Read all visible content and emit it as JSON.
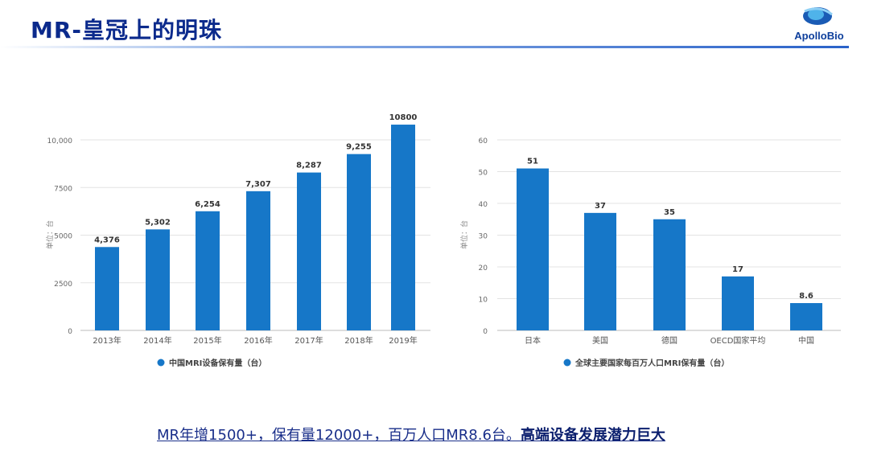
{
  "header": {
    "title": "MR-皇冠上的明珠",
    "logo_text": "ApolloBio"
  },
  "chart_data": [
    {
      "type": "bar",
      "categories": [
        "2013年",
        "2014年",
        "2015年",
        "2016年",
        "2017年",
        "2018年",
        "2019年"
      ],
      "values": [
        4376,
        5302,
        6254,
        7307,
        8287,
        9255,
        10800
      ],
      "data_labels": [
        "4,376",
        "5,302",
        "6,254",
        "7,307",
        "8,287",
        "9,255",
        "10800"
      ],
      "ylabel": "单位：台",
      "yticks": [
        "0",
        "2500",
        "5000",
        "7500",
        "10,000"
      ],
      "ylim": [
        0,
        10800
      ],
      "legend": "中国MRI设备保有量（台）",
      "legend_position": "bottom",
      "grid": true,
      "color": "#1677c8"
    },
    {
      "type": "bar",
      "categories": [
        "日本",
        "美国",
        "德国",
        "OECD国家平均",
        "中国"
      ],
      "values": [
        51,
        37,
        35,
        17,
        8.6
      ],
      "data_labels": [
        "51",
        "37",
        "35",
        "17",
        "8.6"
      ],
      "ylabel": "单位：台",
      "yticks": [
        "0",
        "10",
        "20",
        "30",
        "40",
        "50",
        "60"
      ],
      "ylim": [
        0,
        60
      ],
      "legend": "全球主要国家每百万人口MRI保有量（台）",
      "legend_position": "bottom",
      "grid": true,
      "color": "#1677c8"
    }
  ],
  "footer": {
    "text": "MR年增1500+，保有量12000+，百万人口MR8.6台。",
    "emphasis": "高端设备发展潜力巨大"
  }
}
